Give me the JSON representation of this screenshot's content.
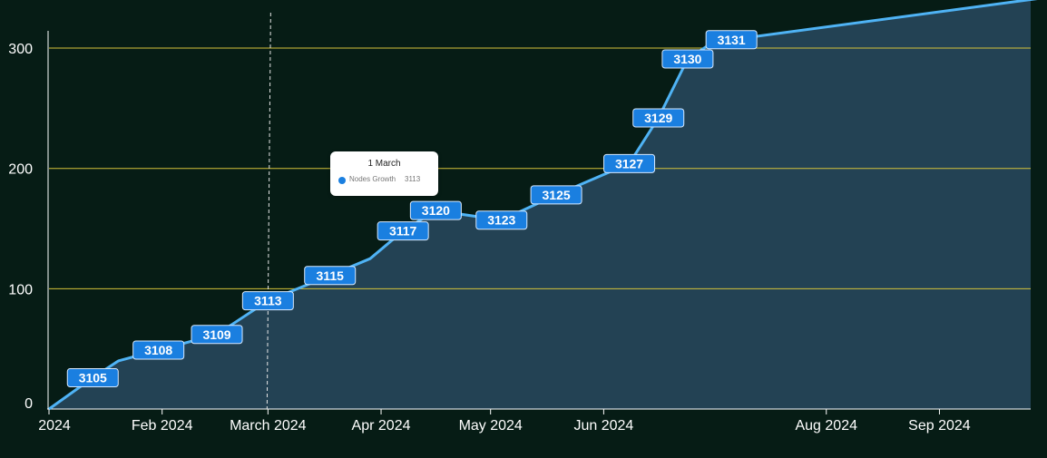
{
  "colors": {
    "background": "#061c15",
    "line": "#4fb3f5",
    "area": "#234254",
    "gridline": "#d4c23a",
    "label_fill": "#1a7fe0"
  },
  "chart_data": {
    "type": "area",
    "series": [
      {
        "name": "Nodes Growth",
        "points": [
          {
            "date": "2024-01-01",
            "y": 0,
            "label": ""
          },
          {
            "date": "2024-01-13",
            "y": 26,
            "label": "3105"
          },
          {
            "date": "2024-01-20",
            "y": 40,
            "label": ""
          },
          {
            "date": "2024-01-31",
            "y": 49,
            "label": "3108"
          },
          {
            "date": "2024-02-16",
            "y": 62,
            "label": "3109"
          },
          {
            "date": "2024-03-01",
            "y": 90,
            "label": "3113"
          },
          {
            "date": "2024-03-18",
            "y": 111,
            "label": "3115"
          },
          {
            "date": "2024-03-29",
            "y": 125,
            "label": ""
          },
          {
            "date": "2024-04-07",
            "y": 148,
            "label": "3117"
          },
          {
            "date": "2024-04-16",
            "y": 165,
            "label": "3120"
          },
          {
            "date": "2024-05-04",
            "y": 157,
            "label": "3123"
          },
          {
            "date": "2024-05-19",
            "y": 178,
            "label": "3125"
          },
          {
            "date": "2024-06-08",
            "y": 204,
            "label": "3127"
          },
          {
            "date": "2024-06-16",
            "y": 242,
            "label": "3129"
          },
          {
            "date": "2024-06-24",
            "y": 291,
            "label": "3130"
          },
          {
            "date": "2024-06-29",
            "y": 301,
            "label": ""
          },
          {
            "date": "2024-07-06",
            "y": 307,
            "label": "3131"
          },
          {
            "date": "2024-09-30",
            "y": 342,
            "label": ""
          }
        ]
      }
    ],
    "x_ticks": [
      {
        "date": "2024-01-01",
        "label": "2024"
      },
      {
        "date": "2024-02-01",
        "label": "Feb 2024"
      },
      {
        "date": "2024-03-01",
        "label": "March 2024"
      },
      {
        "date": "2024-04-01",
        "label": "Apr 2024"
      },
      {
        "date": "2024-05-01",
        "label": "May 2024"
      },
      {
        "date": "2024-06-01",
        "label": "Jun 2024"
      },
      {
        "date": "2024-08-01",
        "label": "Aug 2024"
      },
      {
        "date": "2024-09-01",
        "label": "Sep 2024"
      }
    ],
    "y_ticks": [
      0,
      100,
      200,
      300
    ],
    "ylim": [
      0,
      340
    ],
    "xlim": [
      "2024-01-01",
      "2024-09-26"
    ],
    "grid": "horizontal",
    "crosshair_date": "2024-03-01",
    "title": "",
    "xlabel": "",
    "ylabel": ""
  },
  "tooltip": {
    "title": "1 March",
    "series_name": "Nodes Growth",
    "value": "3113"
  }
}
